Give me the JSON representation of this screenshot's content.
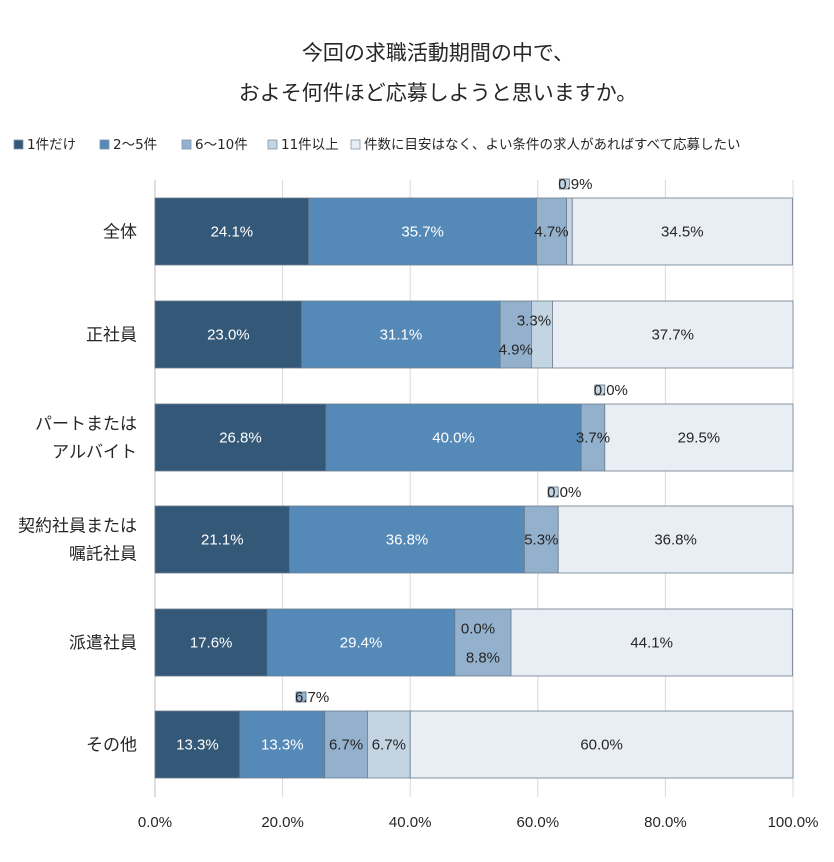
{
  "chart_data": {
    "type": "bar",
    "orientation": "horizontal",
    "stacked": true,
    "title_lines": [
      "今回の求職活動期間の中で、",
      "およそ何件ほど応募しようと思いますか。"
    ],
    "categories": [
      [
        "全体"
      ],
      [
        "正社員"
      ],
      [
        "パートまたは",
        "アルバイト"
      ],
      [
        "契約社員または",
        "嘱託社員"
      ],
      [
        "派遣社員"
      ],
      [
        "その他"
      ]
    ],
    "series": [
      {
        "name": "1件だけ",
        "color": "#345878",
        "label_color": "#ffffff",
        "values": [
          24.1,
          23.0,
          26.8,
          21.1,
          17.6,
          13.3
        ]
      },
      {
        "name": "2〜5件",
        "color": "#5589b7",
        "label_color": "#ffffff",
        "values": [
          35.7,
          31.1,
          40.0,
          36.8,
          29.4,
          13.3
        ]
      },
      {
        "name": "6〜10件",
        "color": "#93b1cd",
        "label_color": "#262626",
        "values": [
          4.7,
          4.9,
          3.7,
          5.3,
          8.8,
          6.7
        ]
      },
      {
        "name": "11件以上",
        "color": "#c3d4e3",
        "label_color": "#262626",
        "values": [
          0.9,
          3.3,
          0.0,
          0.0,
          0.0,
          6.7
        ]
      },
      {
        "name": "件数に目安はなく、よい条件の求人があればすべて応募したい",
        "color": "#e9eef5",
        "label_color": "#262626",
        "values": [
          34.5,
          37.7,
          29.5,
          36.8,
          44.1,
          60.0
        ]
      }
    ],
    "data_labels": [
      [
        "24.1%",
        "35.7%",
        "4.7%",
        "0.9%",
        "34.5%"
      ],
      [
        "23.0%",
        "31.1%",
        "4.9%",
        "3.3%",
        "37.7%"
      ],
      [
        "26.8%",
        "40.0%",
        "3.7%",
        "0.0%",
        "29.5%"
      ],
      [
        "21.1%",
        "36.8%",
        "5.3%",
        "0.0%",
        "36.8%"
      ],
      [
        "17.6%",
        "29.4%",
        "8.8%",
        "0.0%",
        "44.1%"
      ],
      [
        "13.3%",
        "13.3%",
        "6.7%",
        "6.7%",
        "60.0%"
      ]
    ],
    "xlim": [
      0,
      100
    ],
    "x_ticks": [
      "0.0%",
      "20.0%",
      "40.0%",
      "60.0%",
      "80.0%",
      "100.0%"
    ],
    "legend_position": "top",
    "grid": true
  }
}
